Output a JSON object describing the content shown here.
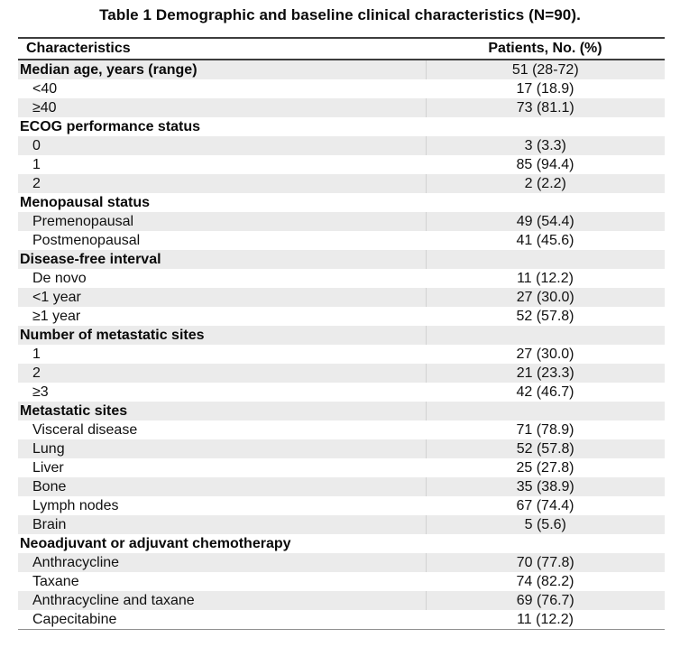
{
  "title": "Table 1 Demographic and baseline clinical characteristics (N=90).",
  "table": {
    "columns": {
      "characteristics": "Characteristics",
      "patients": "Patients, No. (%)"
    },
    "rows": [
      {
        "label": "Median age, years (range)",
        "value": "51 (28-72)",
        "section": true
      },
      {
        "label": "<40",
        "value": "17 (18.9)",
        "section": false
      },
      {
        "label": "≥40",
        "value": "73 (81.1)",
        "section": false
      },
      {
        "label": "ECOG performance status",
        "value": "",
        "section": true
      },
      {
        "label": "0",
        "value": "3 (3.3)",
        "section": false
      },
      {
        "label": "1",
        "value": "85 (94.4)",
        "section": false
      },
      {
        "label": "2",
        "value": "2 (2.2)",
        "section": false
      },
      {
        "label": "Menopausal status",
        "value": "",
        "section": true
      },
      {
        "label": "Premenopausal",
        "value": "49 (54.4)",
        "section": false
      },
      {
        "label": "Postmenopausal",
        "value": "41 (45.6)",
        "section": false
      },
      {
        "label": "Disease-free interval",
        "value": "",
        "section": true
      },
      {
        "label": "De novo",
        "value": "11 (12.2)",
        "section": false
      },
      {
        "label": "<1 year",
        "value": "27 (30.0)",
        "section": false
      },
      {
        "label": "≥1 year",
        "value": "52 (57.8)",
        "section": false
      },
      {
        "label": "Number of metastatic sites",
        "value": "",
        "section": true
      },
      {
        "label": "1",
        "value": "27 (30.0)",
        "section": false
      },
      {
        "label": "2",
        "value": "21 (23.3)",
        "section": false
      },
      {
        "label": "≥3",
        "value": "42 (46.7)",
        "section": false
      },
      {
        "label": "Metastatic sites",
        "value": "",
        "section": true
      },
      {
        "label": "Visceral disease",
        "value": "71 (78.9)",
        "section": false
      },
      {
        "label": "Lung",
        "value": "52 (57.8)",
        "section": false
      },
      {
        "label": "Liver",
        "value": "25 (27.8)",
        "section": false
      },
      {
        "label": "Bone",
        "value": "35 (38.9)",
        "section": false
      },
      {
        "label": "Lymph nodes",
        "value": "67 (74.4)",
        "section": false
      },
      {
        "label": "Brain",
        "value": "5 (5.6)",
        "section": false
      },
      {
        "label": "Neoadjuvant or adjuvant chemotherapy",
        "value": "",
        "section": true
      },
      {
        "label": "Anthracycline",
        "value": "70 (77.8)",
        "section": false
      },
      {
        "label": "Taxane",
        "value": "74 (82.2)",
        "section": false
      },
      {
        "label": "Anthracycline and taxane",
        "value": "69 (76.7)",
        "section": false
      },
      {
        "label": "Capecitabine",
        "value": "11 (12.2)",
        "section": false
      }
    ]
  },
  "colors": {
    "stripe_background": "#ebebeb",
    "stripe_divider": "#d2d2d2",
    "heavy_border": "#3d3d3d",
    "bottom_border": "#8f8f8f",
    "text": "#111111"
  }
}
